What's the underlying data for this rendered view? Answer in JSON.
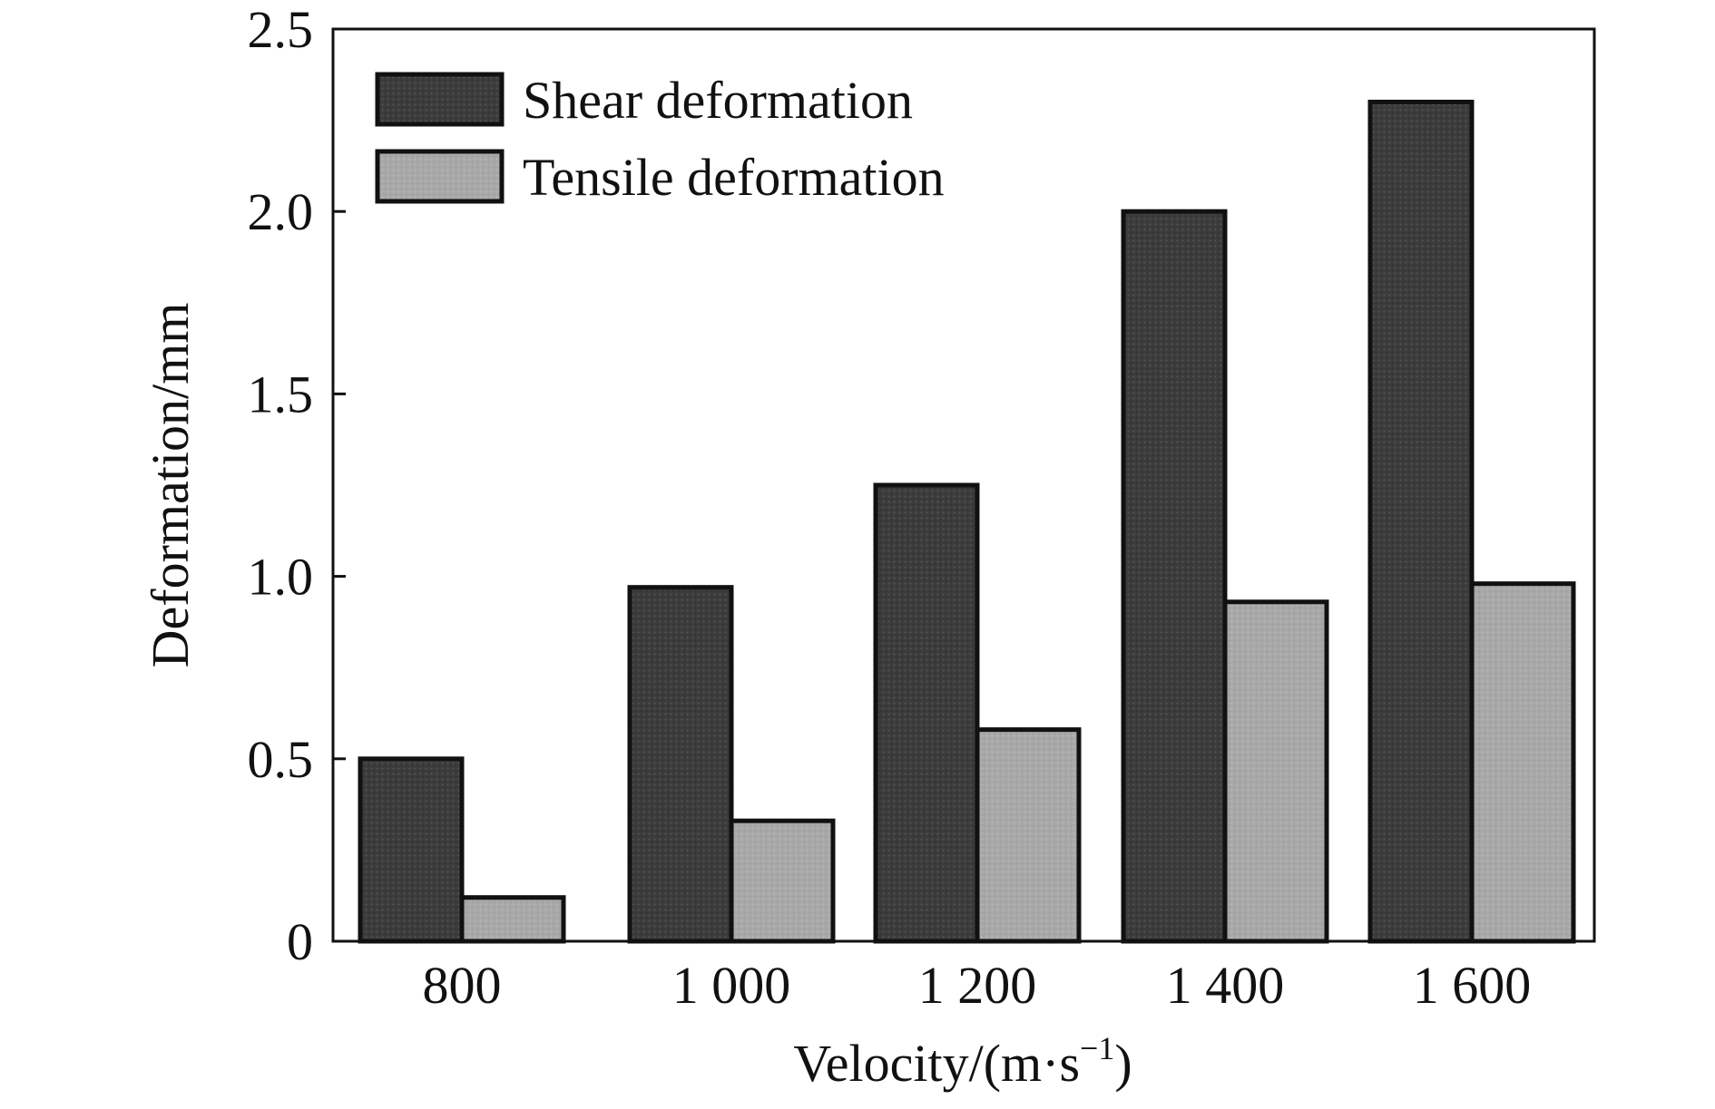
{
  "chart_data": {
    "type": "bar",
    "title": "",
    "xlabel": "Velocity/(m·s",
    "xlabel_sup": "−1",
    "xlabel_close": ")",
    "ylabel": "Deformation/mm",
    "categories": [
      "800",
      "1 000",
      "1 200",
      "1 400",
      "1 600"
    ],
    "series": [
      {
        "name": "Shear deformation",
        "values": [
          0.5,
          0.97,
          1.25,
          2.0,
          2.3
        ],
        "color": "#3c3c3c"
      },
      {
        "name": "Tensile deformation",
        "values": [
          0.12,
          0.33,
          0.58,
          0.93,
          0.98
        ],
        "color": "#a8a8a8"
      }
    ],
    "ylim": [
      0,
      2.5
    ],
    "yticks": [
      0,
      0.5,
      1.0,
      1.5,
      2.0,
      2.5
    ],
    "ytick_labels": [
      "0",
      "0.5",
      "1.0",
      "1.5",
      "2.0",
      "2.5"
    ],
    "grid": false,
    "legend_position": "top-left"
  }
}
